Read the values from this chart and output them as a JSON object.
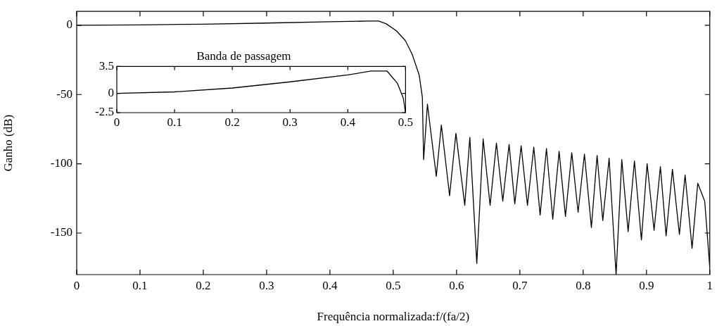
{
  "chart_data": [
    {
      "type": "line",
      "xlabel": "Frequência normalizada:f/(fa/2)",
      "ylabel": "Ganho (dB)",
      "xlim": [
        0,
        1
      ],
      "ylim": [
        -180,
        10
      ],
      "xticks": [
        0,
        0.1,
        0.2,
        0.3,
        0.4,
        0.5,
        0.6,
        0.7,
        0.8,
        0.9,
        1
      ],
      "yticks": [
        -150,
        -100,
        -50,
        0
      ],
      "grid": false,
      "series": [
        {
          "color": "#000000",
          "x": [
            0,
            0.1,
            0.2,
            0.3,
            0.4,
            0.46,
            0.477,
            0.489,
            0.505,
            0.519,
            0.53,
            0.541,
            0.546,
            0.548,
            0.554,
            0.568,
            0.576,
            0.589,
            0.599,
            0.613,
            0.621,
            0.632,
            0.642,
            0.653,
            0.663,
            0.673,
            0.683,
            0.692,
            0.702,
            0.712,
            0.722,
            0.732,
            0.742,
            0.752,
            0.762,
            0.772,
            0.782,
            0.792,
            0.802,
            0.813,
            0.822,
            0.831,
            0.841,
            0.852,
            0.861,
            0.871,
            0.881,
            0.892,
            0.901,
            0.912,
            0.922,
            0.931,
            0.941,
            0.952,
            0.961,
            0.972,
            0.981,
            0.992,
            1
          ],
          "values": [
            0,
            0.3,
            0.8,
            1.6,
            2.5,
            3,
            3,
            1,
            -4,
            -11,
            -21,
            -36,
            -52,
            -97,
            -57,
            -109,
            -72,
            -123,
            -78,
            -130,
            -81,
            -172,
            -82,
            -130,
            -85,
            -127,
            -86,
            -129,
            -87,
            -130,
            -88,
            -137,
            -89,
            -140,
            -91,
            -138,
            -92,
            -135,
            -93,
            -146,
            -94,
            -141,
            -96,
            -180,
            -97,
            -149,
            -98,
            -155,
            -100,
            -148,
            -102,
            -152,
            -104,
            -151,
            -108,
            -161,
            -114,
            -127,
            -175
          ]
        }
      ]
    },
    {
      "type": "line",
      "title": "Banda de passagem",
      "xlim": [
        0,
        0.5
      ],
      "ylim": [
        -2.5,
        3.5
      ],
      "xticks": [
        0,
        0.1,
        0.2,
        0.3,
        0.4,
        0.5
      ],
      "yticks": [
        -2.5,
        0,
        3.5
      ],
      "grid": false,
      "series": [
        {
          "color": "#000000",
          "x": [
            0,
            0.1,
            0.2,
            0.3,
            0.4,
            0.44,
            0.468,
            0.486,
            0.496,
            0.5
          ],
          "values": [
            0,
            0.2,
            0.7,
            1.5,
            2.4,
            2.9,
            2.9,
            1.3,
            -0.6,
            -2.5
          ]
        }
      ]
    }
  ]
}
